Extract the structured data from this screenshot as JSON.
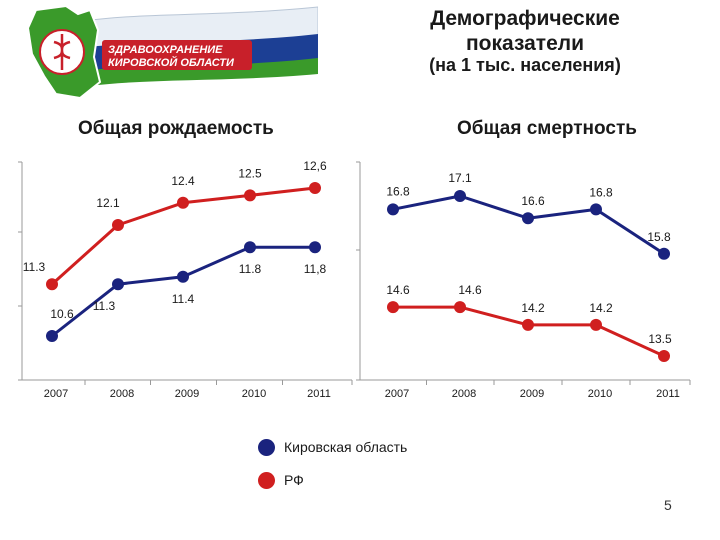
{
  "header": {
    "logo_text_line1": "ЗДРАВООХРАНЕНИЕ",
    "logo_text_line2": "КИРОВСКОЙ ОБЛАСТИ",
    "title": "Демографические показатели",
    "subtitle": "(на 1 тыс. населения)"
  },
  "colors": {
    "kirov": "#1a237e",
    "rf": "#d01f1f",
    "logo_green": "#3a9a2a",
    "logo_blue": "#1c3f94",
    "logo_red": "#c8202a"
  },
  "chart_data": [
    {
      "type": "line",
      "title": "Общая рождаемость",
      "categories": [
        "2007",
        "2008",
        "2009",
        "2010",
        "2011"
      ],
      "series": [
        {
          "name": "Кировская область",
          "values": [
            10.6,
            11.3,
            11.4,
            11.8,
            11.8
          ],
          "labels": [
            "10.6",
            "11.3",
            "11.4",
            "11.8",
            "11,8"
          ]
        },
        {
          "name": "РФ",
          "values": [
            11.3,
            12.1,
            12.4,
            12.5,
            12.6
          ],
          "labels": [
            "11.3",
            "12.1",
            "12.4",
            "12.5",
            "12,6"
          ]
        }
      ],
      "grid": false
    },
    {
      "type": "line",
      "title": "Общая смертность",
      "categories": [
        "2007",
        "2008",
        "2009",
        "2010",
        "2011"
      ],
      "series": [
        {
          "name": "Кировская область",
          "values": [
            16.8,
            17.1,
            16.6,
            16.8,
            15.8
          ],
          "labels": [
            "16.8",
            "17.1",
            "16.6",
            "16.8",
            "15.8"
          ]
        },
        {
          "name": "РФ",
          "values": [
            14.6,
            14.6,
            14.2,
            14.2,
            13.5
          ],
          "labels": [
            "14.6",
            "14.6",
            "14.2",
            "14.2",
            "13.5"
          ]
        }
      ],
      "grid": false
    }
  ],
  "legend": [
    {
      "label": "Кировская область",
      "series": "kirov"
    },
    {
      "label": "РФ",
      "series": "rf"
    }
  ],
  "page_number": "5"
}
